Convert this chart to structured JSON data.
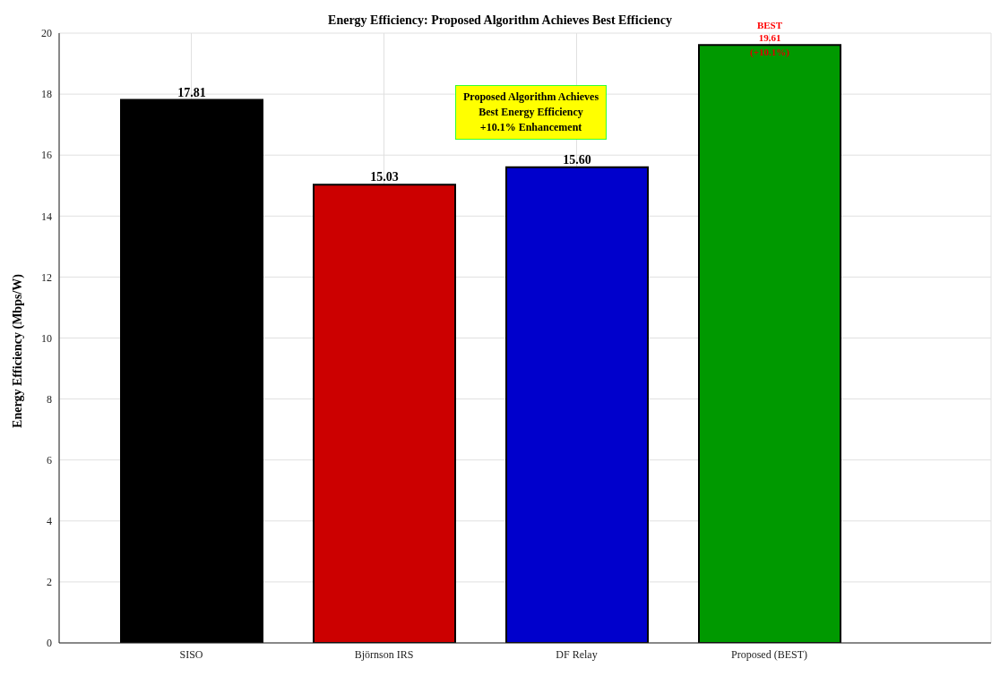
{
  "chart_data": {
    "type": "bar",
    "title": "Energy Efficiency: Proposed Algorithm Achieves Best Efficiency",
    "ylabel": "Energy Efficiency (Mbps/W)",
    "categories": [
      "SISO",
      "Björnson IRS",
      "DF Relay",
      "Proposed (BEST)"
    ],
    "values": [
      17.81,
      15.03,
      15.6,
      19.61
    ],
    "value_labels": [
      "17.81",
      "15.03",
      "15.60",
      "19.61"
    ],
    "colors": [
      "#000000",
      "#cc0000",
      "#0000cc",
      "#009900"
    ],
    "ylim": [
      0,
      20
    ],
    "yticks": [
      0,
      2,
      4,
      6,
      8,
      10,
      12,
      14,
      16,
      18,
      20
    ],
    "grid": true,
    "annotations": [
      {
        "text": "BEST",
        "x": "Proposed (BEST)",
        "y": 19.61
      },
      {
        "text": "(+10.1%)",
        "x": "Proposed (BEST)",
        "y": 19.61
      },
      "Proposed Algorithm Achieves\nBest Energy Efficiency\n+10.1% Enhancement"
    ]
  }
}
